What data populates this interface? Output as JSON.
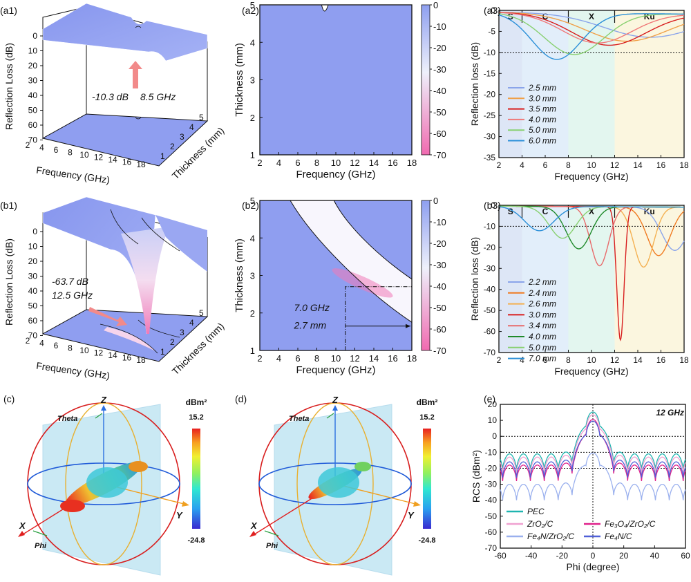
{
  "panels": {
    "a1": {
      "label": "(a1)",
      "ylabel": "Reflection Loss (dB)",
      "xlabel": "Frequency (GHz)",
      "zlabel": "Thickness (mm)",
      "rl_ticks": [
        0,
        10,
        20,
        30,
        40,
        50,
        60,
        70
      ],
      "freq_ticks": [
        2,
        4,
        6,
        8,
        10,
        12,
        14,
        16,
        18
      ],
      "thick_ticks": [
        1,
        2,
        3,
        4,
        5
      ],
      "annotation": {
        "value": "-10.3 dB",
        "freq": "8.5 GHz"
      }
    },
    "a2": {
      "label": "(a2)",
      "xlabel": "Frequency (GHz)",
      "ylabel": "Thickness (mm)",
      "x_ticks": [
        2,
        4,
        6,
        8,
        10,
        12,
        14,
        16,
        18
      ],
      "y_ticks": [
        1,
        2,
        3,
        4,
        5
      ],
      "colorbar_ticks": [
        0,
        -10,
        -20,
        -30,
        -40,
        -50,
        -60,
        -70
      ]
    },
    "a3": {
      "label": "(a3)"
    },
    "b1": {
      "label": "(b1)",
      "ylabel": "Reflection Loss (dB)",
      "xlabel": "Frequency (GHz)",
      "zlabel": "Thickness (mm)",
      "rl_ticks": [
        0,
        10,
        20,
        30,
        40,
        50,
        60,
        70
      ],
      "freq_ticks": [
        2,
        4,
        6,
        8,
        10,
        12,
        14,
        16,
        18
      ],
      "thick_ticks": [
        1,
        2,
        3,
        4,
        5
      ],
      "annotation": {
        "value": "-63.7 dB",
        "freq": "12.5 GHz"
      }
    },
    "b2": {
      "label": "(b2)",
      "xlabel": "Frequency (GHz)",
      "ylabel": "Thickness (mm)",
      "x_ticks": [
        2,
        4,
        6,
        8,
        10,
        12,
        14,
        16,
        18
      ],
      "y_ticks": [
        1,
        2,
        3,
        4,
        5
      ],
      "colorbar_ticks": [
        0,
        -10,
        -20,
        -30,
        -40,
        -50,
        -60,
        -70
      ],
      "annotation": {
        "freq": "7.0 GHz",
        "thick": "2.7 mm"
      }
    },
    "b3": {
      "label": "(b3)"
    },
    "c": {
      "label": "(c)",
      "unit_label": "dBm²",
      "cbar_max": "15.2",
      "cbar_min": "-24.8",
      "axis_z": "Z",
      "axis_x": "X",
      "axis_y": "Y",
      "theta": "Theta",
      "phi": "Phi"
    },
    "d": {
      "label": "(d)",
      "unit_label": "dBm²",
      "cbar_max": "15.2",
      "cbar_min": "-24.8",
      "axis_z": "Z",
      "axis_x": "X",
      "axis_y": "Y",
      "theta": "Theta",
      "phi": "Phi"
    },
    "e": {
      "label": "(e)"
    }
  },
  "chart_data": [
    {
      "id": "a3",
      "type": "line",
      "xlabel": "Frequency (GHz)",
      "ylabel": "Reflection loss (dB)",
      "xlim": [
        2,
        18
      ],
      "ylim": [
        -35,
        0
      ],
      "x_ticks": [
        2,
        4,
        6,
        8,
        10,
        12,
        14,
        16,
        18
      ],
      "y_ticks": [
        0,
        -5,
        -10,
        -15,
        -20,
        -25,
        -30,
        -35
      ],
      "ref_line": -10,
      "bands": [
        {
          "name": "S",
          "from": 2,
          "to": 4,
          "color": "#dde6f6"
        },
        {
          "name": "C",
          "from": 4,
          "to": 8,
          "color": "#e2eefa"
        },
        {
          "name": "X",
          "from": 8,
          "to": 12,
          "color": "#e3f6ef"
        },
        {
          "name": "Ku",
          "from": 12,
          "to": 18,
          "color": "#fbf6df"
        }
      ],
      "series": [
        {
          "name": "2.5 mm",
          "color": "#8aa4ea",
          "dip_f": 15.0,
          "dip_v": -6.0,
          "w": 5.5
        },
        {
          "name": "3.0 mm",
          "color": "#f0a048",
          "dip_f": 13.0,
          "dip_v": -7.0,
          "w": 5.0
        },
        {
          "name": "3.5 mm",
          "color": "#d81e1e",
          "dip_f": 11.5,
          "dip_v": -8.0,
          "w": 4.5
        },
        {
          "name": "4.0 mm",
          "color": "#f07878",
          "dip_f": 10.5,
          "dip_v": -7.5,
          "w": 4.2
        },
        {
          "name": "5.0 mm",
          "color": "#88d070",
          "dip_f": 8.5,
          "dip_v": -10.3,
          "w": 3.6
        },
        {
          "name": "6.0 mm",
          "color": "#2a8fd8",
          "dip_f": 7.0,
          "dip_v": -11.5,
          "w": 3.0
        }
      ]
    },
    {
      "id": "b3",
      "type": "line",
      "xlabel": "Frequency (GHz)",
      "ylabel": "Reflection loss (dB)",
      "xlim": [
        2,
        18
      ],
      "ylim": [
        -70,
        0
      ],
      "x_ticks": [
        2,
        4,
        6,
        8,
        10,
        12,
        14,
        16,
        18
      ],
      "y_ticks": [
        0,
        -10,
        -20,
        -30,
        -40,
        -50,
        -60,
        -70
      ],
      "ref_line": -10,
      "bands": [
        {
          "name": "S",
          "from": 2,
          "to": 4,
          "color": "#dde6f6"
        },
        {
          "name": "C",
          "from": 4,
          "to": 8,
          "color": "#e2eefa"
        },
        {
          "name": "X",
          "from": 8,
          "to": 12,
          "color": "#e3f6ef"
        },
        {
          "name": "Ku",
          "from": 12,
          "to": 18,
          "color": "#fbf6df"
        }
      ],
      "series": [
        {
          "name": "2.2 mm",
          "color": "#8aa4ea",
          "dip_f": 17.2,
          "dip_v": -21.0,
          "w": 1.6
        },
        {
          "name": "2.4 mm",
          "color": "#f07a20",
          "dip_f": 15.8,
          "dip_v": -23.5,
          "w": 1.4
        },
        {
          "name": "2.6 mm",
          "color": "#f4b050",
          "dip_f": 14.5,
          "dip_v": -29.0,
          "w": 1.2
        },
        {
          "name": "3.0 mm",
          "color": "#d81e1e",
          "dip_f": 12.5,
          "dip_v": -63.7,
          "w": 0.45
        },
        {
          "name": "3.4 mm",
          "color": "#e86a6a",
          "dip_f": 10.7,
          "dip_v": -28.5,
          "w": 1.1
        },
        {
          "name": "4.0 mm",
          "color": "#1f8a2a",
          "dip_f": 8.9,
          "dip_v": -20.5,
          "w": 1.5
        },
        {
          "name": "5.0 mm",
          "color": "#88d070",
          "dip_f": 7.5,
          "dip_v": -15.5,
          "w": 1.6
        },
        {
          "name": "7.0 mm",
          "color": "#2a8fd8",
          "dip_f": 5.5,
          "dip_v": -12.0,
          "w": 1.8
        }
      ]
    },
    {
      "id": "e",
      "type": "line",
      "xlabel": "Phi (degree)",
      "ylabel": "RCS (dBm²)",
      "xlim": [
        -60,
        60
      ],
      "ylim": [
        -70,
        20
      ],
      "x_ticks": [
        -60,
        -40,
        -20,
        0,
        20,
        40,
        60
      ],
      "y_ticks": [
        20,
        10,
        0,
        -10,
        -20,
        -30,
        -40,
        -50,
        -60,
        -70
      ],
      "ref_lines": [
        0,
        -10,
        -20
      ],
      "title": "12 GHz",
      "series": [
        {
          "name": "PEC",
          "color": "#1fb5b0",
          "peak": 15.2,
          "base": -11
        },
        {
          "name": "ZrO₂/C",
          "color": "#f0a0d0",
          "peak": 13.5,
          "base": -13
        },
        {
          "name": "Fe₄N/ZrO₂/C",
          "color": "#9ab0ee",
          "peak": -10.5,
          "base": -30
        },
        {
          "name": "Fe₃O₄/ZrO₂/C",
          "color": "#e0208a",
          "peak": 10.5,
          "base": -18
        },
        {
          "name": "Fe₄N/C",
          "color": "#5060d8",
          "peak": 9.5,
          "base": -16
        }
      ]
    }
  ]
}
